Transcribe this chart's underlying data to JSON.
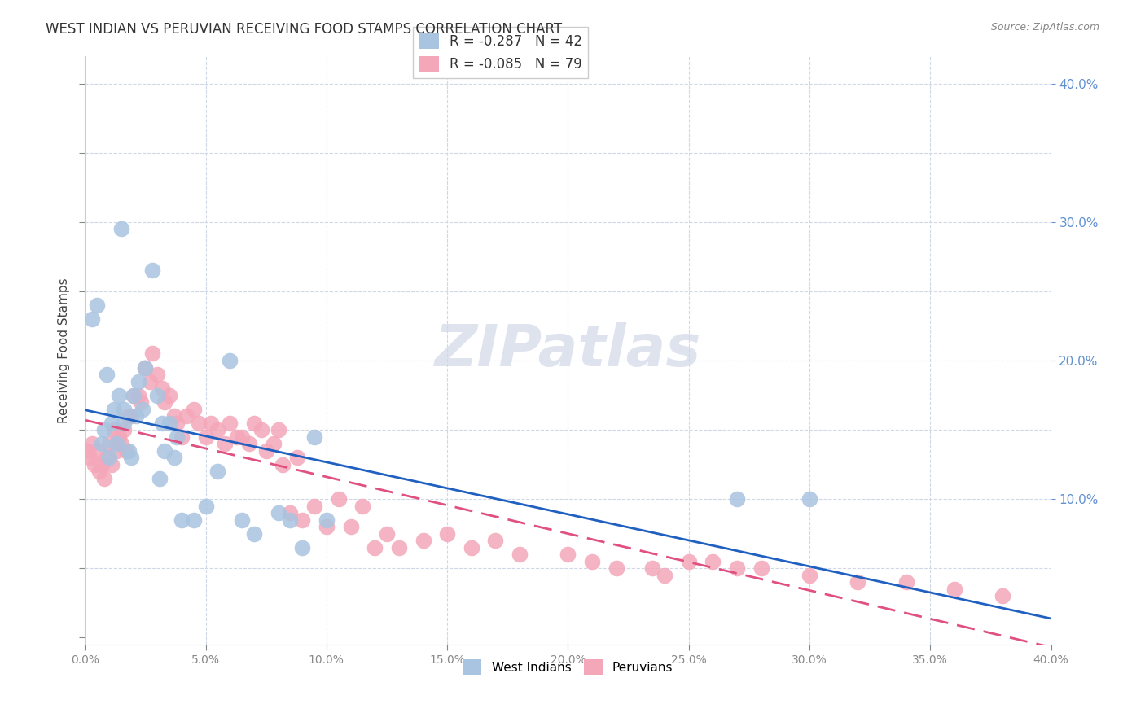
{
  "title": "WEST INDIAN VS PERUVIAN RECEIVING FOOD STAMPS CORRELATION CHART",
  "source": "Source: ZipAtlas.com",
  "xlabel": "",
  "ylabel": "Receiving Food Stamps",
  "xlim": [
    0.0,
    0.4
  ],
  "ylim": [
    -0.005,
    0.42
  ],
  "xticks": [
    0.0,
    0.05,
    0.1,
    0.15,
    0.2,
    0.25,
    0.3,
    0.35,
    0.4
  ],
  "yticks": [
    0.0,
    0.05,
    0.1,
    0.15,
    0.2,
    0.25,
    0.3,
    0.35,
    0.4
  ],
  "right_yticks": [
    0.1,
    0.2,
    0.3,
    0.4
  ],
  "legend_labels": [
    "West Indians",
    "Peruvians"
  ],
  "legend_R": [
    "R = -0.287",
    "R = -0.085"
  ],
  "legend_N": [
    "N = 42",
    "N = 79"
  ],
  "blue_color": "#a8c4e0",
  "pink_color": "#f4a7b9",
  "blue_line_color": "#2060c0",
  "pink_line_color": "#e05080",
  "right_axis_color": "#6090d0",
  "watermark": "ZIPatlas",
  "background_color": "#ffffff",
  "grid_color": "#d0d8e8",
  "blue_scatter_x": [
    0.003,
    0.005,
    0.007,
    0.008,
    0.009,
    0.01,
    0.011,
    0.012,
    0.013,
    0.014,
    0.015,
    0.016,
    0.016,
    0.018,
    0.019,
    0.02,
    0.021,
    0.022,
    0.024,
    0.025,
    0.028,
    0.03,
    0.031,
    0.032,
    0.033,
    0.035,
    0.037,
    0.038,
    0.04,
    0.045,
    0.05,
    0.055,
    0.06,
    0.065,
    0.07,
    0.08,
    0.085,
    0.09,
    0.095,
    0.1,
    0.27,
    0.3
  ],
  "blue_scatter_y": [
    0.23,
    0.24,
    0.14,
    0.15,
    0.19,
    0.13,
    0.155,
    0.165,
    0.14,
    0.175,
    0.295,
    0.155,
    0.165,
    0.135,
    0.13,
    0.175,
    0.16,
    0.185,
    0.165,
    0.195,
    0.265,
    0.175,
    0.115,
    0.155,
    0.135,
    0.155,
    0.13,
    0.145,
    0.085,
    0.085,
    0.095,
    0.12,
    0.2,
    0.085,
    0.075,
    0.09,
    0.085,
    0.065,
    0.145,
    0.085,
    0.1,
    0.1
  ],
  "pink_scatter_x": [
    0.001,
    0.002,
    0.003,
    0.004,
    0.005,
    0.006,
    0.007,
    0.008,
    0.009,
    0.01,
    0.011,
    0.012,
    0.013,
    0.014,
    0.015,
    0.016,
    0.017,
    0.018,
    0.019,
    0.02,
    0.022,
    0.023,
    0.025,
    0.027,
    0.028,
    0.03,
    0.032,
    0.033,
    0.035,
    0.037,
    0.038,
    0.04,
    0.042,
    0.045,
    0.047,
    0.05,
    0.052,
    0.055,
    0.058,
    0.06,
    0.063,
    0.065,
    0.068,
    0.07,
    0.073,
    0.075,
    0.078,
    0.08,
    0.082,
    0.085,
    0.088,
    0.09,
    0.095,
    0.1,
    0.105,
    0.11,
    0.115,
    0.12,
    0.125,
    0.13,
    0.14,
    0.15,
    0.16,
    0.17,
    0.18,
    0.2,
    0.21,
    0.22,
    0.235,
    0.24,
    0.25,
    0.26,
    0.27,
    0.28,
    0.3,
    0.32,
    0.34,
    0.36,
    0.38
  ],
  "pink_scatter_y": [
    0.135,
    0.13,
    0.14,
    0.125,
    0.135,
    0.12,
    0.125,
    0.115,
    0.13,
    0.14,
    0.125,
    0.15,
    0.135,
    0.145,
    0.14,
    0.15,
    0.135,
    0.16,
    0.16,
    0.175,
    0.175,
    0.17,
    0.195,
    0.185,
    0.205,
    0.19,
    0.18,
    0.17,
    0.175,
    0.16,
    0.155,
    0.145,
    0.16,
    0.165,
    0.155,
    0.145,
    0.155,
    0.15,
    0.14,
    0.155,
    0.145,
    0.145,
    0.14,
    0.155,
    0.15,
    0.135,
    0.14,
    0.15,
    0.125,
    0.09,
    0.13,
    0.085,
    0.095,
    0.08,
    0.1,
    0.08,
    0.095,
    0.065,
    0.075,
    0.065,
    0.07,
    0.075,
    0.065,
    0.07,
    0.06,
    0.06,
    0.055,
    0.05,
    0.05,
    0.045,
    0.055,
    0.055,
    0.05,
    0.05,
    0.045,
    0.04,
    0.04,
    0.035,
    0.03
  ]
}
